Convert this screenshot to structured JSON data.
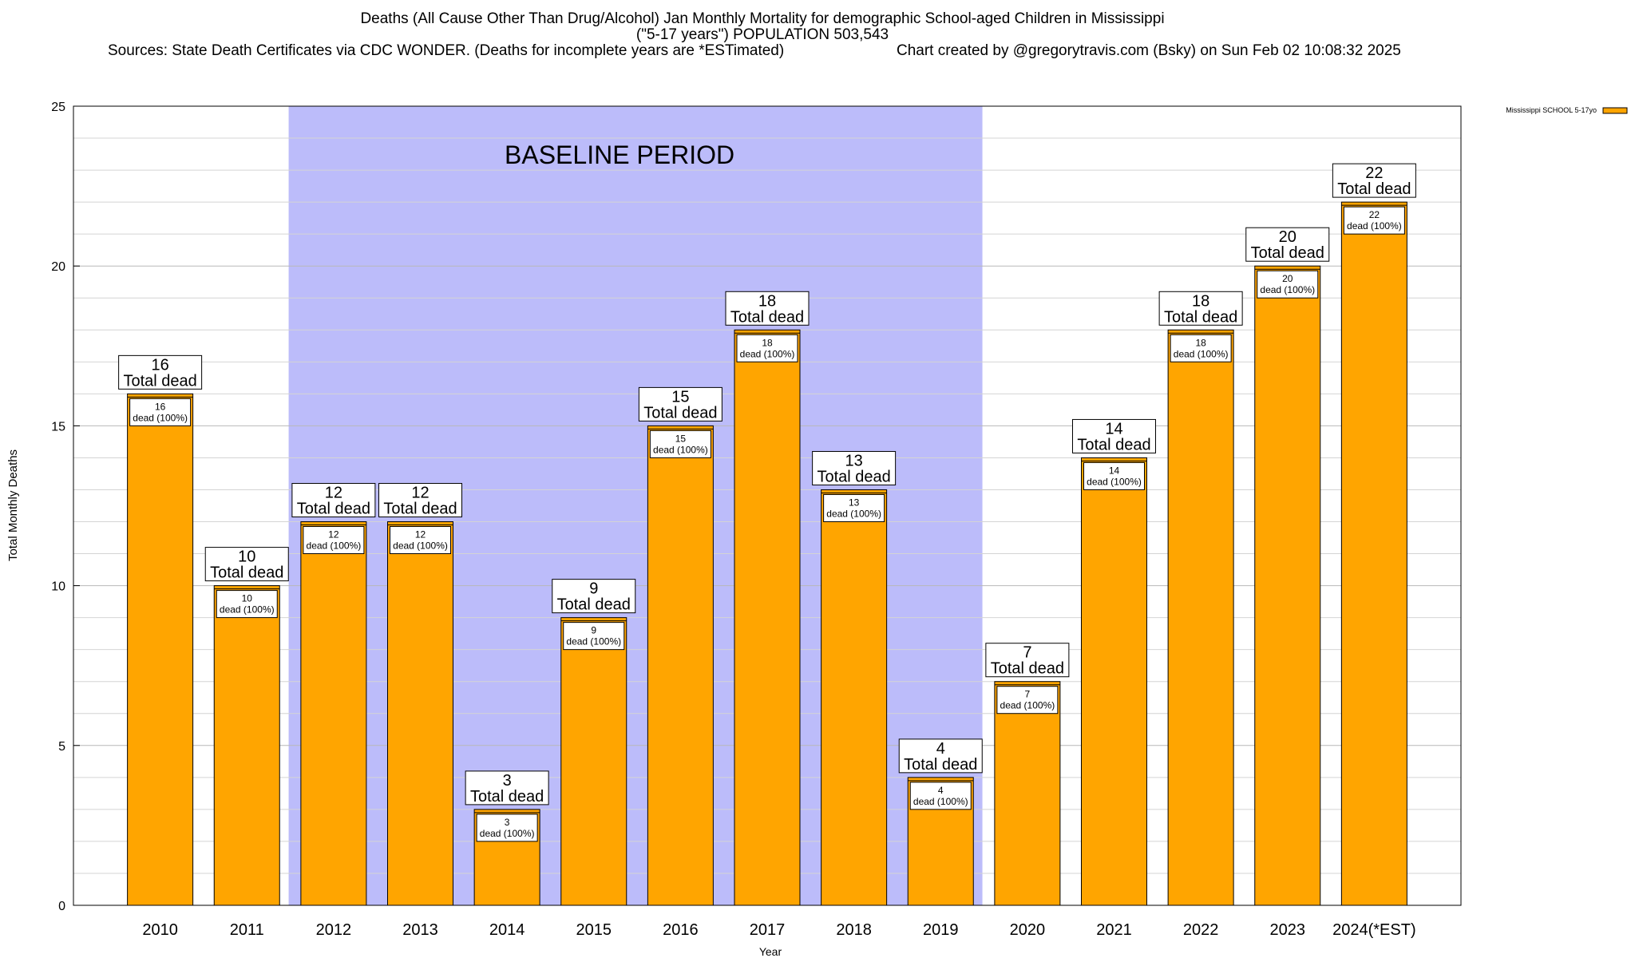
{
  "header": {
    "line1": "Deaths (All Cause Other Than Drug/Alcohol) Jan Monthly Mortality for demographic School-aged Children in Mississippi",
    "line2": "(\"5-17 years\") POPULATION 503,543",
    "line3": "Sources: State Death Certificates via CDC WONDER. (Deaths for incomplete years are *ESTimated)",
    "line4": "Chart created by @gregorytravis.com (Bsky) on Sun Feb 02 10:08:32 2025"
  },
  "chart_data": {
    "type": "bar",
    "xlabel": "Year",
    "ylabel": "Total Monthly Deaths",
    "ylim": [
      0,
      25
    ],
    "yticks": [
      0,
      5,
      10,
      15,
      20,
      25
    ],
    "grid": true,
    "legend": {
      "label": "Mississippi SCHOOL 5-17yo",
      "placement": "top-right",
      "color": "#ffa500"
    },
    "categories": [
      "2010",
      "2011",
      "2012",
      "2013",
      "2014",
      "2015",
      "2016",
      "2017",
      "2018",
      "2019",
      "2020",
      "2021",
      "2022",
      "2023",
      "2024(*EST)"
    ],
    "values": [
      16,
      10,
      12,
      12,
      3,
      9,
      15,
      18,
      13,
      4,
      7,
      14,
      18,
      20,
      22
    ],
    "total_label_suffix": "Total dead",
    "inner_label_suffix": "dead (100%)",
    "baseline": {
      "label": "BASELINE PERIOD",
      "start": "2012",
      "end": "2019",
      "color": "#bcbcfa"
    },
    "bar_color": "#ffa500"
  }
}
